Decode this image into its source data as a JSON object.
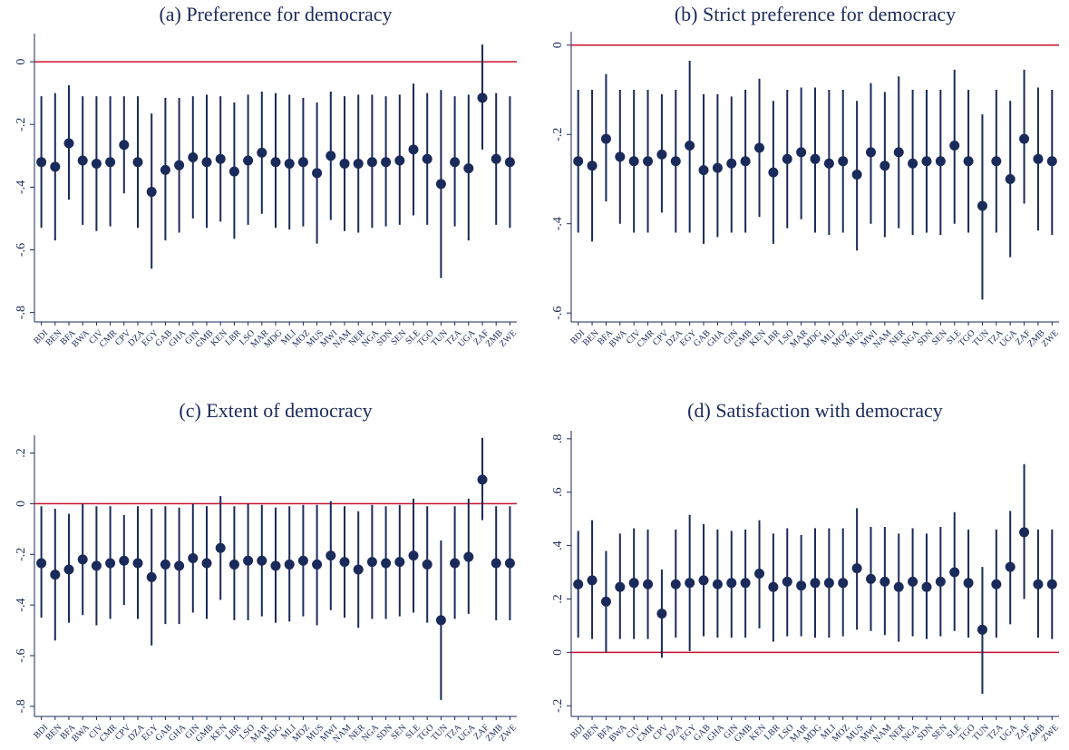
{
  "chart_data": [
    {
      "type": "errorbar",
      "title": "(a) Preference for democracy",
      "categories": [
        "BDI",
        "BEN",
        "BFA",
        "BWA",
        "CIV",
        "CMR",
        "CPV",
        "DZA",
        "EGY",
        "GAB",
        "GHA",
        "GIN",
        "GMB",
        "KEN",
        "LBR",
        "LSO",
        "MAR",
        "MDG",
        "MLI",
        "MOZ",
        "MUS",
        "MWI",
        "NAM",
        "NER",
        "NGA",
        "SDN",
        "SEN",
        "SLE",
        "TGO",
        "TUN",
        "TZA",
        "UGA",
        "ZAF",
        "ZMB",
        "ZWE"
      ],
      "values": [
        -0.32,
        -0.335,
        -0.26,
        -0.315,
        -0.325,
        -0.32,
        -0.265,
        -0.32,
        -0.415,
        -0.345,
        -0.33,
        -0.305,
        -0.32,
        -0.31,
        -0.35,
        -0.315,
        -0.29,
        -0.32,
        -0.325,
        -0.32,
        -0.355,
        -0.3,
        -0.325,
        -0.325,
        -0.32,
        -0.32,
        -0.315,
        -0.28,
        -0.31,
        -0.39,
        -0.32,
        -0.34,
        -0.115,
        -0.31,
        -0.32
      ],
      "ci_low": [
        -0.53,
        -0.57,
        -0.44,
        -0.52,
        -0.54,
        -0.525,
        -0.42,
        -0.53,
        -0.66,
        -0.57,
        -0.545,
        -0.5,
        -0.53,
        -0.51,
        -0.565,
        -0.52,
        -0.485,
        -0.53,
        -0.535,
        -0.525,
        -0.58,
        -0.505,
        -0.54,
        -0.545,
        -0.53,
        -0.525,
        -0.52,
        -0.49,
        -0.52,
        -0.69,
        -0.525,
        -0.57,
        -0.28,
        -0.52,
        -0.53
      ],
      "ci_high": [
        -0.11,
        -0.1,
        -0.075,
        -0.11,
        -0.11,
        -0.11,
        -0.11,
        -0.11,
        -0.165,
        -0.115,
        -0.115,
        -0.11,
        -0.105,
        -0.11,
        -0.13,
        -0.105,
        -0.095,
        -0.1,
        -0.105,
        -0.115,
        -0.13,
        -0.095,
        -0.11,
        -0.105,
        -0.105,
        -0.11,
        -0.105,
        -0.07,
        -0.1,
        -0.09,
        -0.11,
        -0.105,
        0.055,
        -0.1,
        -0.11
      ],
      "ylim": [
        -0.83,
        0.09
      ],
      "yticks": [
        {
          "value": -0.8,
          "label": "-.8"
        },
        {
          "value": -0.6,
          "label": "-.6"
        },
        {
          "value": -0.4,
          "label": "-.4"
        },
        {
          "value": -0.2,
          "label": "-.2"
        },
        0
      ],
      "ref_line": 0,
      "ref_color": "#c8102e",
      "color": "#1a2a5a"
    },
    {
      "type": "errorbar",
      "title": "(b) Strict preference for democracy",
      "categories": [
        "BDI",
        "BEN",
        "BFA",
        "BWA",
        "CIV",
        "CMR",
        "CPV",
        "DZA",
        "EGY",
        "GAB",
        "GHA",
        "GIN",
        "GMB",
        "KEN",
        "LBR",
        "LSO",
        "MAR",
        "MDG",
        "MLI",
        "MOZ",
        "MUS",
        "MWI",
        "NAM",
        "NER",
        "NGA",
        "SDN",
        "SEN",
        "SLE",
        "TGO",
        "TUN",
        "TZA",
        "UGA",
        "ZAF",
        "ZMB",
        "ZWE"
      ],
      "values": [
        -0.26,
        -0.27,
        -0.21,
        -0.25,
        -0.26,
        -0.26,
        -0.245,
        -0.26,
        -0.225,
        -0.28,
        -0.275,
        -0.265,
        -0.26,
        -0.23,
        -0.285,
        -0.255,
        -0.24,
        -0.255,
        -0.265,
        -0.26,
        -0.29,
        -0.24,
        -0.27,
        -0.24,
        -0.265,
        -0.26,
        -0.26,
        -0.225,
        -0.26,
        -0.36,
        -0.26,
        -0.3,
        -0.21,
        -0.255,
        -0.26
      ],
      "ci_low": [
        -0.42,
        -0.44,
        -0.35,
        -0.4,
        -0.42,
        -0.42,
        -0.375,
        -0.42,
        -0.42,
        -0.445,
        -0.43,
        -0.42,
        -0.42,
        -0.385,
        -0.445,
        -0.41,
        -0.39,
        -0.42,
        -0.425,
        -0.42,
        -0.46,
        -0.4,
        -0.43,
        -0.41,
        -0.425,
        -0.42,
        -0.425,
        -0.4,
        -0.42,
        -0.57,
        -0.42,
        -0.475,
        -0.355,
        -0.415,
        -0.425
      ],
      "ci_high": [
        -0.1,
        -0.1,
        -0.065,
        -0.1,
        -0.1,
        -0.1,
        -0.11,
        -0.1,
        -0.035,
        -0.11,
        -0.11,
        -0.115,
        -0.1,
        -0.075,
        -0.125,
        -0.1,
        -0.095,
        -0.095,
        -0.1,
        -0.1,
        -0.125,
        -0.085,
        -0.105,
        -0.07,
        -0.1,
        -0.1,
        -0.1,
        -0.055,
        -0.1,
        -0.155,
        -0.1,
        -0.125,
        -0.055,
        -0.095,
        -0.1
      ],
      "ylim": [
        -0.62,
        0.03
      ],
      "yticks": [
        {
          "value": -0.6,
          "label": "-.6"
        },
        {
          "value": -0.4,
          "label": "-.4"
        },
        {
          "value": -0.2,
          "label": "-.2"
        },
        0
      ],
      "ref_line": 0,
      "ref_color": "#c8102e",
      "color": "#1a2a5a"
    },
    {
      "type": "errorbar",
      "title": "(c) Extent of democracy",
      "categories": [
        "BDI",
        "BEN",
        "BFA",
        "BWA",
        "CIV",
        "CMR",
        "CPV",
        "DZA",
        "EGY",
        "GAB",
        "GHA",
        "GIN",
        "GMB",
        "KEN",
        "LBR",
        "LSO",
        "MAR",
        "MDG",
        "MLI",
        "MOZ",
        "MUS",
        "MWI",
        "NAM",
        "NER",
        "NGA",
        "SDN",
        "SEN",
        "SLE",
        "TGO",
        "TUN",
        "TZA",
        "UGA",
        "ZAF",
        "ZMB",
        "ZWE"
      ],
      "values": [
        -0.235,
        -0.28,
        -0.26,
        -0.22,
        -0.245,
        -0.235,
        -0.225,
        -0.235,
        -0.29,
        -0.24,
        -0.245,
        -0.215,
        -0.235,
        -0.175,
        -0.24,
        -0.225,
        -0.225,
        -0.245,
        -0.24,
        -0.225,
        -0.24,
        -0.205,
        -0.23,
        -0.26,
        -0.23,
        -0.235,
        -0.23,
        -0.205,
        -0.24,
        -0.46,
        -0.235,
        -0.21,
        0.095,
        -0.235,
        -0.235
      ],
      "ci_low": [
        -0.45,
        -0.54,
        -0.47,
        -0.44,
        -0.48,
        -0.455,
        -0.4,
        -0.455,
        -0.56,
        -0.475,
        -0.475,
        -0.43,
        -0.455,
        -0.38,
        -0.46,
        -0.46,
        -0.445,
        -0.47,
        -0.465,
        -0.445,
        -0.48,
        -0.42,
        -0.45,
        -0.49,
        -0.455,
        -0.455,
        -0.445,
        -0.43,
        -0.47,
        -0.775,
        -0.455,
        -0.435,
        -0.065,
        -0.46,
        -0.46
      ],
      "ci_high": [
        -0.01,
        -0.02,
        -0.04,
        0,
        -0.01,
        -0.01,
        -0.045,
        -0.01,
        -0.02,
        -0.01,
        -0.015,
        0,
        -0.01,
        0.03,
        -0.01,
        0,
        -0.005,
        -0.015,
        -0.01,
        -0.005,
        -0.005,
        0.01,
        -0.01,
        -0.03,
        -0.005,
        -0.01,
        -0.005,
        0.02,
        -0.01,
        -0.145,
        -0.01,
        0.02,
        0.26,
        -0.01,
        -0.01
      ],
      "ylim": [
        -0.84,
        0.27
      ],
      "yticks": [
        {
          "value": -0.8,
          "label": "-.8"
        },
        {
          "value": -0.6,
          "label": "-.6"
        },
        {
          "value": -0.4,
          "label": "-.4"
        },
        {
          "value": -0.2,
          "label": "-.2"
        },
        0,
        {
          "value": 0.2,
          "label": ".2"
        }
      ],
      "ref_line": 0,
      "ref_color": "#c8102e",
      "color": "#1a2a5a"
    },
    {
      "type": "errorbar",
      "title": "(d) Satisfaction with democracy",
      "categories": [
        "BDI",
        "BEN",
        "BFA",
        "BWA",
        "CIV",
        "CMR",
        "CPV",
        "DZA",
        "EGY",
        "GAB",
        "GHA",
        "GIN",
        "GMB",
        "KEN",
        "LBR",
        "LSO",
        "MAR",
        "MDG",
        "MLI",
        "MOZ",
        "MUS",
        "MWI",
        "NAM",
        "NER",
        "NGA",
        "SDN",
        "SEN",
        "SLE",
        "TGO",
        "TUN",
        "TZA",
        "UGA",
        "ZAF",
        "ZMB",
        "ZWE"
      ],
      "values": [
        0.255,
        0.27,
        0.19,
        0.245,
        0.26,
        0.255,
        0.145,
        0.255,
        0.26,
        0.27,
        0.255,
        0.26,
        0.26,
        0.295,
        0.245,
        0.265,
        0.25,
        0.26,
        0.26,
        0.26,
        0.315,
        0.275,
        0.265,
        0.245,
        0.265,
        0.245,
        0.265,
        0.3,
        0.26,
        0.085,
        0.255,
        0.32,
        0.45,
        0.255,
        0.255
      ],
      "ci_low": [
        0.055,
        0.05,
        0,
        0.05,
        0.05,
        0.05,
        -0.02,
        0.055,
        0.005,
        0.06,
        0.055,
        0.055,
        0.055,
        0.09,
        0.04,
        0.06,
        0.06,
        0.055,
        0.055,
        0.06,
        0.085,
        0.08,
        0.065,
        0.04,
        0.06,
        0.05,
        0.06,
        0.08,
        0.055,
        -0.155,
        0.055,
        0.105,
        0.2,
        0.055,
        0.05
      ],
      "ci_high": [
        0.455,
        0.495,
        0.38,
        0.445,
        0.465,
        0.46,
        0.31,
        0.46,
        0.515,
        0.48,
        0.46,
        0.455,
        0.46,
        0.495,
        0.445,
        0.465,
        0.44,
        0.465,
        0.465,
        0.465,
        0.54,
        0.47,
        0.47,
        0.445,
        0.465,
        0.445,
        0.47,
        0.525,
        0.46,
        0.32,
        0.46,
        0.53,
        0.705,
        0.46,
        0.46
      ],
      "ylim": [
        -0.24,
        0.83
      ],
      "yticks": [
        {
          "value": -0.2,
          "label": "-.2"
        },
        0,
        {
          "value": 0.2,
          "label": ".2"
        },
        {
          "value": 0.4,
          "label": ".4"
        },
        {
          "value": 0.6,
          "label": ".6"
        },
        {
          "value": 0.8,
          "label": ".8"
        }
      ],
      "ref_line": 0,
      "ref_color": "#c8102e",
      "color": "#1a2a5a"
    }
  ]
}
